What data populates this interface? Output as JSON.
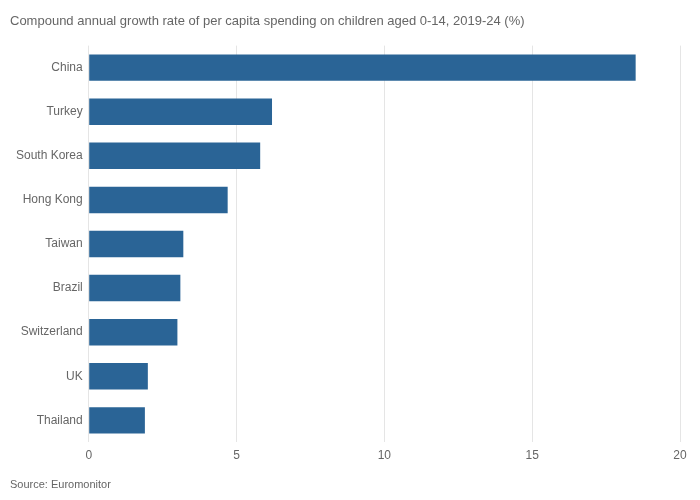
{
  "chart_data": {
    "type": "bar",
    "orientation": "horizontal",
    "title": "Compound annual growth rate of per capita spending on children aged 0-14, 2019-24 (%)",
    "source": "Source: Euromonitor",
    "categories": [
      "China",
      "Turkey",
      "South Korea",
      "Hong Kong",
      "Taiwan",
      "Brazil",
      "Switzerland",
      "UK",
      "Thailand"
    ],
    "values": [
      18.5,
      6.2,
      5.8,
      4.7,
      3.2,
      3.1,
      3.0,
      2.0,
      1.9
    ],
    "color": "#2a6496",
    "xlim": [
      0,
      20
    ],
    "xticks": [
      0,
      5,
      10,
      15,
      20
    ],
    "grid": true
  }
}
